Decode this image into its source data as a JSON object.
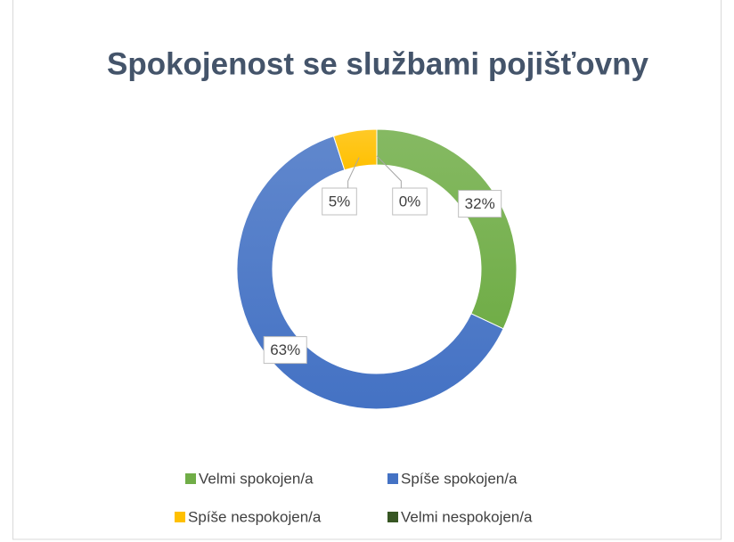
{
  "chart_data": {
    "type": "doughnut",
    "title": "Spokojenost se službami pojišťovny",
    "series": [
      {
        "name": "Velmi spokojen/a",
        "color": "#70ad47",
        "values": [
          32
        ],
        "value_labels": [
          "32%"
        ]
      },
      {
        "name": "Spíše spokojen/a",
        "color": "#4472c4",
        "values": [
          63
        ],
        "value_labels": [
          "63%"
        ]
      },
      {
        "name": "Spíše nespokojen/a",
        "color": "#ffc000",
        "values": [
          5
        ],
        "value_labels": [
          "5%"
        ]
      },
      {
        "name": "Velmi nespokojen/a",
        "color": "#375623",
        "values": [
          0
        ],
        "value_labels": [
          "0%"
        ]
      }
    ],
    "legend": "bottom"
  }
}
